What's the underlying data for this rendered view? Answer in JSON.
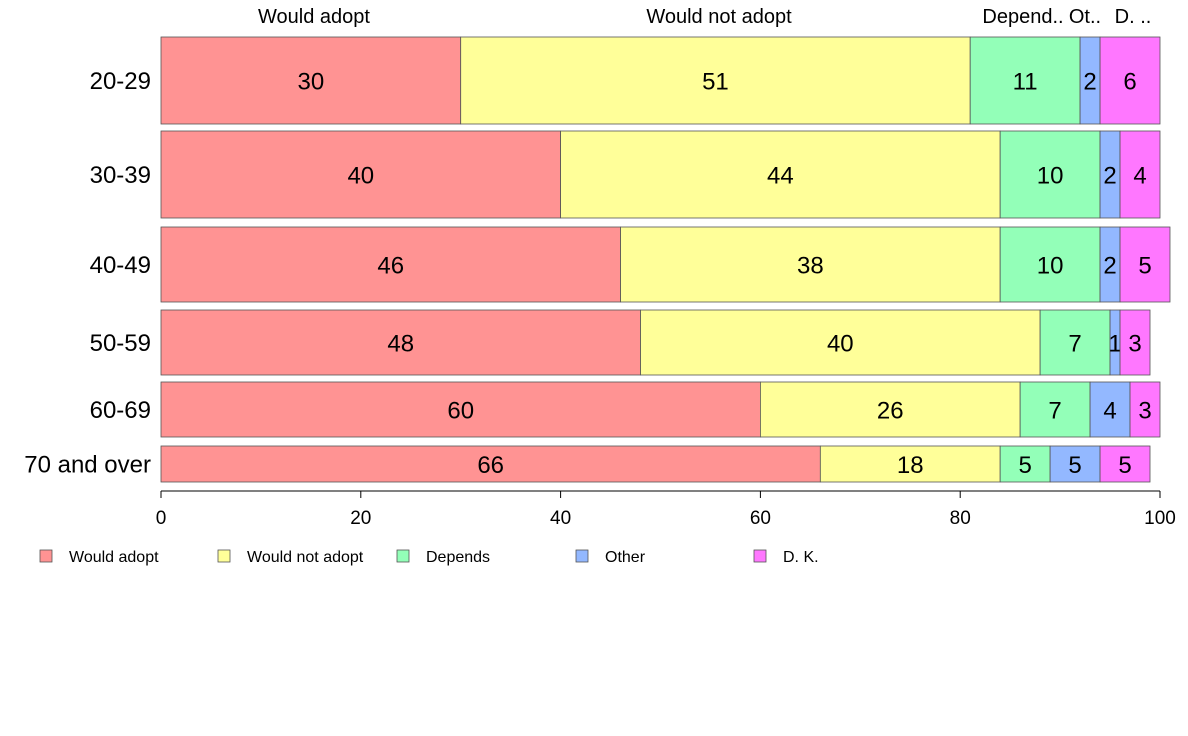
{
  "chart_data": {
    "type": "bar",
    "orientation": "horizontal",
    "stacked": true,
    "categories": [
      "20-29",
      "30-39",
      "40-49",
      "50-59",
      "60-69",
      "70 and over"
    ],
    "series": [
      {
        "name": "Would adopt",
        "color": "#ff9393",
        "values": [
          30,
          40,
          46,
          48,
          60,
          66
        ]
      },
      {
        "name": "Would not adopt",
        "color": "#ffff99",
        "values": [
          51,
          44,
          38,
          40,
          26,
          18
        ]
      },
      {
        "name": "Depends",
        "color": "#93ffb8",
        "values": [
          11,
          10,
          10,
          7,
          7,
          5
        ]
      },
      {
        "name": "Other",
        "color": "#93b8ff",
        "values": [
          2,
          2,
          2,
          1,
          4,
          5
        ]
      },
      {
        "name": "D. K.",
        "color": "#ff77ff",
        "values": [
          6,
          4,
          5,
          3,
          3,
          5
        ]
      }
    ],
    "top_labels": [
      "Would adopt",
      "Would not adopt",
      "Depend..",
      "Ot..",
      "D. .."
    ],
    "xlim": [
      0,
      100
    ],
    "x_ticks": [
      0,
      20,
      40,
      60,
      80,
      100
    ],
    "grid": false,
    "legend_position": "bottom-left"
  }
}
